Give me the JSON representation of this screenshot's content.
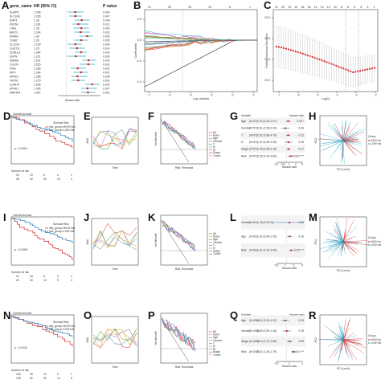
{
  "figure": {
    "panel_letters": [
      "A",
      "B",
      "C",
      "D",
      "E",
      "F",
      "G",
      "H",
      "I",
      "J",
      "K",
      "L",
      "M",
      "N",
      "O",
      "P",
      "Q",
      "R"
    ]
  },
  "panel_a": {
    "col_gene": "gene_name",
    "col_hr": "HR (95% CI)",
    "col_p": "P value",
    "rows": [
      {
        "gene": "DUSP5",
        "hr": "1.208",
        "p": "0.043"
      },
      {
        "gene": "SLC2A3",
        "hr": "1.209",
        "p": "0.047"
      },
      {
        "gene": "EMP3",
        "hr": "1.36",
        "p": "0.005"
      },
      {
        "gene": "FSCN1",
        "hr": "1.281",
        "p": "0.012"
      },
      {
        "gene": "CAV1",
        "hr": "1.35",
        "p": "0.003"
      },
      {
        "gene": "BIRC3",
        "hr": "1.334",
        "p": "0.001"
      },
      {
        "gene": "NR4A2",
        "hr": "1.49",
        "p": "0.005"
      },
      {
        "gene": "TGM2",
        "hr": "1.35",
        "p": "0.005"
      },
      {
        "gene": "SLC2A1",
        "hr": "1.209",
        "p": "0.004"
      },
      {
        "gene": "CHST11",
        "hr": "1.25",
        "p": "0.014"
      },
      {
        "gene": "DCBLD2",
        "hr": "1.344",
        "p": "0.002"
      },
      {
        "gene": "SSPN",
        "hr": "1.221",
        "p": "0.009"
      },
      {
        "gene": "RBMS1",
        "hr": "1.521",
        "p": "0.001"
      },
      {
        "gene": "CD109",
        "hr": "1.515",
        "p": "0.001"
      },
      {
        "gene": "PIM2",
        "hr": "1.265",
        "p": "0.001"
      },
      {
        "gene": "MITF",
        "hr": "1.344",
        "p": "0.001"
      },
      {
        "gene": "NR4C2",
        "hr": "1.258",
        "p": "0.008"
      },
      {
        "gene": "TRPS1",
        "hr": "1.279",
        "p": "0.001"
      },
      {
        "gene": "ILVNHP",
        "hr": "1.605",
        "p": "0.001"
      },
      {
        "gene": "SPHK1",
        "hr": "1.495",
        "p": "0.007"
      },
      {
        "gene": "MAP4K4",
        "hr": "1.507",
        "p": "0.001"
      }
    ],
    "hr_numeric": [
      1.208,
      1.209,
      1.36,
      1.281,
      1.35,
      1.334,
      1.49,
      1.35,
      1.209,
      1.25,
      1.344,
      1.221,
      1.521,
      1.515,
      1.265,
      1.344,
      1.258,
      1.279,
      1.605,
      1.495,
      1.507
    ],
    "x_label": "Hazard ratio"
  },
  "panel_b": {
    "top_ticks": [
      "21",
      "20",
      "15",
      "10",
      "6",
      "1"
    ],
    "x_ticks": [
      "-7",
      "-6",
      "-5",
      "-4",
      "-3",
      "-2"
    ],
    "y_ticks": [
      "0.5",
      "0.0",
      "-0.5",
      "-1.0"
    ],
    "xlabel": "Log Lambda",
    "ylabel": "Coefficients"
  },
  "panel_c": {
    "top_ticks": [
      "21",
      "20",
      "19",
      "19",
      "18",
      "16",
      "14",
      "13",
      "12",
      "10",
      "8",
      "8",
      "6",
      "5",
      "3",
      "1"
    ],
    "x_ticks": [
      "-7",
      "-6",
      "-5",
      "-4",
      "-3",
      "-2"
    ],
    "y_ticks": [
      "23.5",
      "22.5",
      "21.5",
      "20.5"
    ],
    "xlabel": "Log(λ)",
    "ylabel": "Partial Likelihood Deviance"
  },
  "colors": {
    "red": "#d62728",
    "blue": "#1f77b4",
    "cyan": "#22a7c9",
    "orange": "#f08a24",
    "green": "#2ca02c",
    "purple": "#9467bd",
    "yellow": "#c7b000",
    "magenta": "#d63fb0"
  },
  "km_rows": [
    {
      "letter": "D",
      "title": "Overall survival",
      "p": "p < 0.0001",
      "legend_title": "Survival Risk",
      "legend": [
        "risk_group=HIGH risk",
        "risk_group=LOW risk"
      ],
      "risk_title": "Number at risk",
      "risk_high": [
        "19",
        "10",
        "5",
        "2",
        "1"
      ],
      "risk_low": [
        "38",
        "32",
        "20",
        "10",
        "4"
      ]
    },
    {
      "letter": "I",
      "title": "Overall survival",
      "p": "p = 0.0053",
      "legend_title": "Survival Risk",
      "legend": [
        "risk_group=HIGH risk",
        "risk_group=LOW risk"
      ],
      "risk_title": "Number at risk",
      "risk_high": [
        "41",
        "18",
        "8",
        "3",
        "1"
      ],
      "risk_low": [
        "40",
        "30",
        "19",
        "9",
        "3"
      ]
    },
    {
      "letter": "N",
      "title": "Overall survival",
      "p": "p = 0.0031",
      "legend_title": "Survival Risk",
      "legend": [
        "risk_group=HIGH risk",
        "risk_group=LOW risk"
      ],
      "risk_title": "Number at risk",
      "risk_high": [
        "128",
        "40",
        "13",
        "5",
        "1"
      ],
      "risk_low": [
        "128",
        "62",
        "30",
        "14",
        "5"
      ]
    }
  ],
  "dca_rows": [
    {
      "letter": "F",
      "legend": [
        "All",
        "None",
        "Age",
        "Gender",
        "T",
        "N",
        "M",
        "Stage",
        "Tumor"
      ],
      "xlabel": "Risk Threshold",
      "ylabel": "Net Benefit"
    },
    {
      "letter": "K",
      "legend": [
        "All",
        "None",
        "Age",
        "Gender",
        "T",
        "N",
        "Stage",
        "Tumor"
      ],
      "xlabel": "Risk Threshold",
      "ylabel": "Net Benefit"
    },
    {
      "letter": "P",
      "legend": [
        "All",
        "None",
        "Age",
        "Gender",
        "T",
        "N",
        "M",
        "Stage",
        "Tumor"
      ],
      "xlabel": "Risk Threshold",
      "ylabel": "Net Benefit"
    }
  ],
  "forest_rows": [
    {
      "letter": "G",
      "header": [
        "Variable",
        "",
        "Hazard ratio"
      ],
      "rows": [
        {
          "v": "Age",
          "n": "(N=57)",
          "ci": "1.04 (1.00-1.07)",
          "p": "0.04 *"
        },
        {
          "v": "Gender",
          "n": "(N=57)",
          "ci": "0.91 (0.38-2.19)",
          "p": "0.83"
        },
        {
          "v": "T",
          "n": "(N=57)",
          "ci": "2.01 (0.86-4.70)",
          "p": "0.11"
        },
        {
          "v": "N",
          "n": "(N=57)",
          "ci": "1.47 (0.66-3.26)",
          "p": "0.35"
        },
        {
          "v": "Stage",
          "n": "(N=57)",
          "ci": "1.43 (0.65-3.16)",
          "p": "0.37"
        },
        {
          "v": "Risk",
          "n": "(N=57)",
          "ci": "2.25 (1.40-3.60)",
          "p": "<0.001 ***"
        }
      ],
      "axis_label": "Hazard ratio",
      "ticks": [
        "0.2",
        "0.5",
        "1",
        "2",
        "5"
      ]
    },
    {
      "letter": "L",
      "header": [
        "Variable",
        "",
        "Hazard ratio"
      ],
      "rows": [
        {
          "v": "Gender",
          "n": "(N=81)",
          "ci": "1.36 (0.00-Inf)",
          "p": "1.00"
        },
        {
          "v": "Age",
          "n": "(N=81)",
          "ci": "1.02 (0.99-1.05)",
          "p": "0.16"
        },
        {
          "v": "Risk",
          "n": "(N=81)",
          "ci": "1.91 (1.20-3.05)",
          "p": "0.007 **"
        }
      ],
      "axis_label": "Hazard ratio",
      "ticks": [
        "0.5",
        "1",
        "2",
        "5"
      ]
    },
    {
      "letter": "Q",
      "header": [
        "Variable",
        "",
        "Hazard ratio"
      ],
      "rows": [
        {
          "v": "Age",
          "n": "(N=256)",
          "ci": "1.01 (0.99-1.02)",
          "p": "0.35"
        },
        {
          "v": "Gender",
          "n": "(N=256)",
          "ci": "0.80 (0.50-1.28)",
          "p": "0.35"
        },
        {
          "v": "Stage",
          "n": "(N=256)",
          "ci": "1.10 (0.73-1.66)",
          "p": "0.65"
        },
        {
          "v": "Risk",
          "n": "(N=256)",
          "ci": "2.01 (1.45-2.79)",
          "p": "<0.001 ***"
        }
      ],
      "axis_label": "Hazard ratio",
      "ticks": [
        "0.5",
        "1",
        "2"
      ]
    }
  ],
  "pca_rows": [
    {
      "letter": "H",
      "legend_title": "Group",
      "legend": [
        "HIGH risk",
        "LOW risk"
      ],
      "xlabel": "PC1 (xx%)",
      "ylabel": "PC2"
    },
    {
      "letter": "M",
      "legend_title": "Group",
      "legend": [
        "HIGH risk",
        "LOW risk"
      ],
      "xlabel": "PC1 (xx%)",
      "ylabel": "PC2"
    },
    {
      "letter": "R",
      "legend_title": "Group",
      "legend": [
        "HIGH risk",
        "LOW risk"
      ],
      "xlabel": "PC1 (xx%)",
      "ylabel": "PC2"
    }
  ],
  "roc_rows": [
    {
      "letter": "E",
      "ylabel": "AUC",
      "xlabel": "Time"
    },
    {
      "letter": "J",
      "ylabel": "AUC",
      "xlabel": "Time"
    },
    {
      "letter": "O",
      "ylabel": "AUC",
      "xlabel": "Time"
    }
  ]
}
